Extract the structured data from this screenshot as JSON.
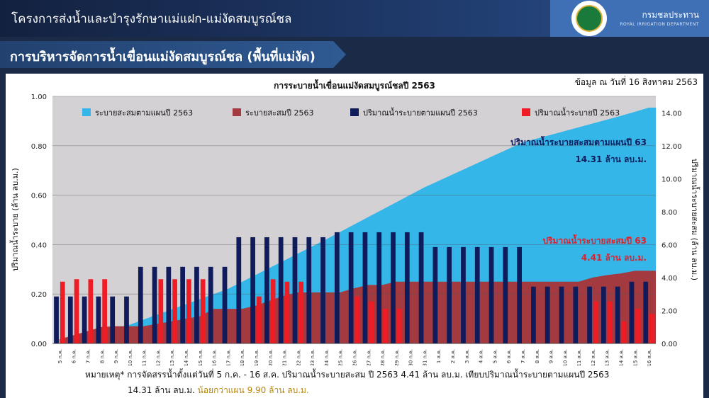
{
  "header": {
    "title": "โครงการส่งน้ำและบำรุงรักษาแม่แฝก-แม่งัดสมบูรณ์ชล",
    "org_th": "กรมชลประทาน",
    "org_en": "ROYAL IRRIGATION DEPARTMENT"
  },
  "banner": {
    "title": "การบริหารจัดการน้ำเขื่อนแม่งัดสมบูรณ์ชล (พื้นที่แม่งัด)"
  },
  "notes": {
    "line1": "หมายเหตุ* การจัดสรรน้ำตั้งแต่วันที่ 5 ก.ค. - 16 ส.ค. ปริมาณน้ำระบายสะสม ปี 2563 4.41 ล้าน ลบ.ม. เทียบปริมาณน้ำระบายตามแผนปี 2563",
    "line2a": "14.31 ล้าน ลบ.ม.",
    "line2b": "น้อยกว่าแผน 9.90 ล้าน ลบ.ม."
  },
  "chart_data": {
    "type": "bar",
    "title": "การระบายน้ำเขื่อนแม่งัดสมบูรณ์ชลปี 2563",
    "date_note": "ข้อมูล ณ วันที่ 16 สิงหาคม 2563",
    "ylabel": "ปริมาณน้ำระบาย (ล้าน ลบ.ม.)",
    "y2label": "ปริมาณน้ำระบายสะสม (ล้าน ลบ.ม.)",
    "ylim": [
      0,
      1
    ],
    "y2lim": [
      0,
      15
    ],
    "yticks": [
      "0.00",
      "0.20",
      "0.40",
      "0.60",
      "0.80",
      "1.00"
    ],
    "y2ticks": [
      "0.00",
      "2.00",
      "4.00",
      "6.00",
      "8.00",
      "10.00",
      "12.00",
      "14.00"
    ],
    "categories": [
      "5 ก.ค.",
      "6 ก.ค.",
      "7 ก.ค.",
      "8 ก.ค.",
      "9 ก.ค.",
      "10 ก.ค.",
      "11 ก.ค.",
      "12 ก.ค.",
      "13 ก.ค.",
      "14 ก.ค.",
      "15 ก.ค.",
      "16 ก.ค.",
      "17 ก.ค.",
      "18 ก.ค.",
      "19 ก.ค.",
      "20 ก.ค.",
      "21 ก.ค.",
      "22 ก.ค.",
      "23 ก.ค.",
      "24 ก.ค.",
      "25 ก.ค.",
      "26 ก.ค.",
      "27 ก.ค.",
      "28 ก.ค.",
      "29 ก.ค.",
      "30 ก.ค.",
      "31 ก.ค.",
      "1 ส.ค.",
      "2 ส.ค.",
      "3 ส.ค.",
      "4 ส.ค.",
      "5 ส.ค.",
      "6 ส.ค.",
      "7 ส.ค.",
      "8 ส.ค.",
      "9 ส.ค.",
      "10 ส.ค.",
      "11 ส.ค.",
      "12 ส.ค.",
      "13 ส.ค.",
      "14 ส.ค.",
      "15 ส.ค.",
      "16 ส.ค."
    ],
    "series": [
      {
        "name": "ระบายสะสมตามแผนปี 2563",
        "type": "area",
        "axis": "right",
        "color": "#35b6e9",
        "values": [
          0.19,
          0.38,
          0.57,
          0.76,
          0.95,
          1.14,
          1.45,
          1.76,
          2.07,
          2.38,
          2.69,
          3.0,
          3.31,
          3.74,
          4.17,
          4.6,
          5.03,
          5.46,
          5.89,
          6.32,
          6.77,
          7.22,
          7.67,
          8.12,
          8.57,
          9.02,
          9.47,
          9.86,
          10.25,
          10.64,
          11.03,
          11.42,
          11.81,
          12.2,
          12.43,
          12.66,
          12.89,
          13.12,
          13.35,
          13.58,
          13.81,
          14.06,
          14.31
        ]
      },
      {
        "name": "ระบายสะสมปี 2563",
        "type": "area",
        "axis": "right",
        "color": "#a23a3f",
        "values": [
          0.25,
          0.5,
          0.75,
          1.0,
          1.05,
          1.05,
          1.05,
          1.2,
          1.35,
          1.5,
          1.65,
          2.1,
          2.1,
          2.1,
          2.3,
          2.6,
          2.9,
          3.1,
          3.1,
          3.1,
          3.1,
          3.35,
          3.55,
          3.55,
          3.75,
          3.75,
          3.75,
          3.75,
          3.75,
          3.75,
          3.75,
          3.75,
          3.75,
          3.75,
          3.75,
          3.75,
          3.75,
          3.75,
          4.0,
          4.15,
          4.25,
          4.41,
          4.41
        ]
      },
      {
        "name": "ปริมาณน้ำระบายตามแผนปี 2563",
        "type": "bar",
        "axis": "left",
        "color": "#0f1b5a",
        "values": [
          0.19,
          0.19,
          0.19,
          0.19,
          0.19,
          0.19,
          0.31,
          0.31,
          0.31,
          0.31,
          0.31,
          0.31,
          0.31,
          0.43,
          0.43,
          0.43,
          0.43,
          0.43,
          0.43,
          0.43,
          0.45,
          0.45,
          0.45,
          0.45,
          0.45,
          0.45,
          0.45,
          0.39,
          0.39,
          0.39,
          0.39,
          0.39,
          0.39,
          0.39,
          0.23,
          0.23,
          0.23,
          0.23,
          0.23,
          0.23,
          0.23,
          0.25,
          0.25
        ]
      },
      {
        "name": "ปริมาณน้ำระบายปี 2563",
        "type": "bar",
        "axis": "left",
        "color": "#ee1c25",
        "values": [
          0.25,
          0.26,
          0.26,
          0.26,
          0,
          0,
          0,
          0.26,
          0.26,
          0.26,
          0.26,
          0,
          0,
          0,
          0.19,
          0.26,
          0.25,
          0.25,
          0,
          0,
          0,
          0.19,
          0.17,
          0.14,
          0.14,
          0,
          0,
          0,
          0,
          0,
          0,
          0,
          0,
          0,
          0,
          0,
          0,
          0,
          0.17,
          0.17,
          0.09,
          0.14,
          0.12
        ]
      }
    ],
    "annotations": [
      {
        "text": "ปริมาณน้ำระบายสะสมตามแผนปี 63",
        "color": "#0f1b5a"
      },
      {
        "text": "14.31 ล้าน ลบ.ม.",
        "color": "#0f1b5a"
      },
      {
        "text": "ปริมาณน้ำระบายสะสมปี 63",
        "color": "#e0202a"
      },
      {
        "text": "4.41 ล้าน ลบ.ม.",
        "color": "#e0202a"
      }
    ],
    "legend": "top",
    "grid": true
  }
}
